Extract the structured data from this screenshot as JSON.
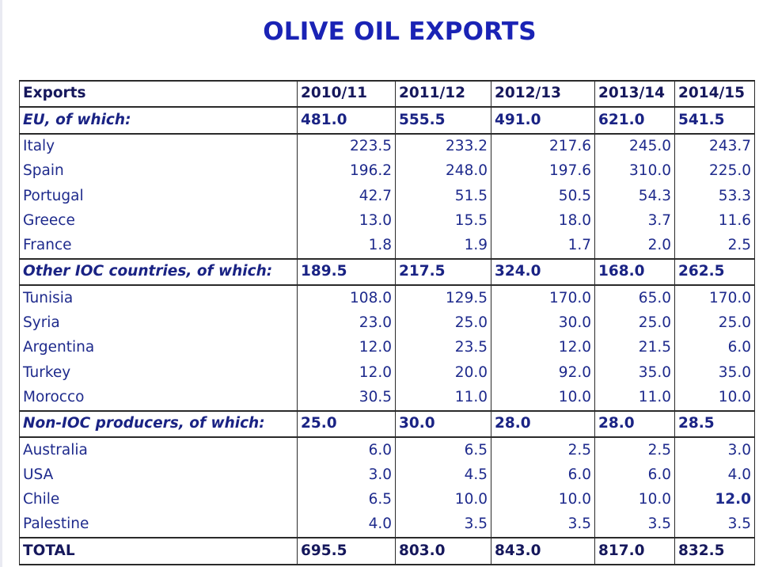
{
  "title": "OLIVE OIL EXPORTS",
  "columns": [
    "Exports",
    "2010/11",
    "2011/12",
    "2012/13",
    "2013/14",
    "2014/15"
  ],
  "rows": [
    {
      "kind": "group",
      "label": "EU, of which:",
      "values": [
        "481.0",
        "555.5",
        "491.0",
        "621.0",
        "541.5"
      ]
    },
    {
      "kind": "item",
      "label": "Italy",
      "values": [
        "223.5",
        "233.2",
        "217.6",
        "245.0",
        "243.7"
      ]
    },
    {
      "kind": "item",
      "label": "Spain",
      "values": [
        "196.2",
        "248.0",
        "197.6",
        "310.0",
        "225.0"
      ]
    },
    {
      "kind": "item",
      "label": "Portugal",
      "values": [
        "42.7",
        "51.5",
        "50.5",
        "54.3",
        "53.3"
      ]
    },
    {
      "kind": "item",
      "label": "Greece",
      "values": [
        "13.0",
        "15.5",
        "18.0",
        "3.7",
        "11.6"
      ]
    },
    {
      "kind": "item",
      "label": "France",
      "values": [
        "1.8",
        "1.9",
        "1.7",
        "2.0",
        "2.5"
      ]
    },
    {
      "kind": "group",
      "label": "Other IOC countries, of which:",
      "values": [
        "189.5",
        "217.5",
        "324.0",
        "168.0",
        "262.5"
      ]
    },
    {
      "kind": "item",
      "label": "Tunisia",
      "values": [
        "108.0",
        "129.5",
        "170.0",
        "65.0",
        "170.0"
      ]
    },
    {
      "kind": "item",
      "label": "Syria",
      "values": [
        "23.0",
        "25.0",
        "30.0",
        "25.0",
        "25.0"
      ]
    },
    {
      "kind": "item",
      "label": "Argentina",
      "values": [
        "12.0",
        "23.5",
        "12.0",
        "21.5",
        "6.0"
      ]
    },
    {
      "kind": "item",
      "label": "Turkey",
      "values": [
        "12.0",
        "20.0",
        "92.0",
        "35.0",
        "35.0"
      ]
    },
    {
      "kind": "item",
      "label": "Morocco",
      "values": [
        "30.5",
        "11.0",
        "10.0",
        "11.0",
        "10.0"
      ]
    },
    {
      "kind": "group",
      "label": "Non-IOC producers, of which:",
      "values": [
        "25.0",
        "30.0",
        "28.0",
        "28.0",
        "28.5"
      ]
    },
    {
      "kind": "item",
      "label": "Australia",
      "values": [
        "6.0",
        "6.5",
        "2.5",
        "2.5",
        "3.0"
      ]
    },
    {
      "kind": "item",
      "label": "USA",
      "values": [
        "3.0",
        "4.5",
        "6.0",
        "6.0",
        "4.0"
      ]
    },
    {
      "kind": "item",
      "label": "Chile",
      "values": [
        "6.5",
        "10.0",
        "10.0",
        "10.0",
        "12.0"
      ],
      "bold_index": 4
    },
    {
      "kind": "item",
      "label": "Palestine",
      "values": [
        "4.0",
        "3.5",
        "3.5",
        "3.5",
        "3.5"
      ]
    },
    {
      "kind": "total",
      "label": "TOTAL",
      "values": [
        "695.5",
        "803.0",
        "843.0",
        "817.0",
        "832.5"
      ]
    }
  ]
}
